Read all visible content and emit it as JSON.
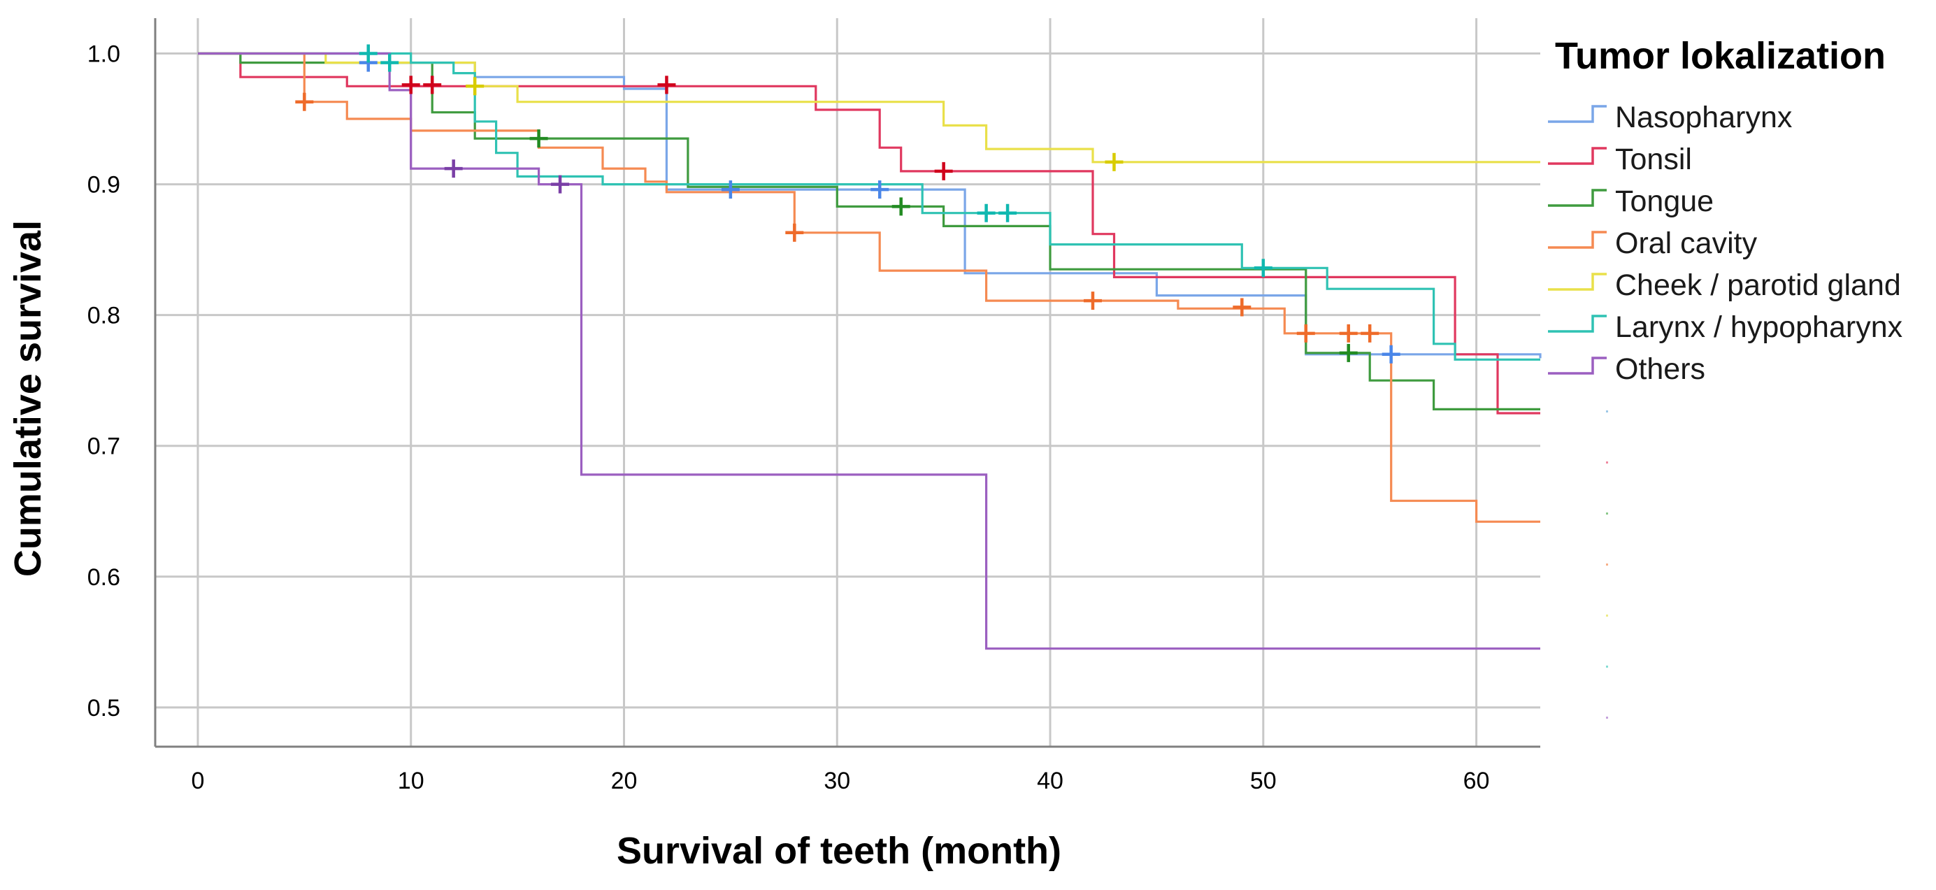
{
  "chart_data": {
    "type": "line",
    "subtype": "kaplan-meier step",
    "title": "",
    "xlabel": "Survival of teeth (month)",
    "ylabel": "Cumulative survival",
    "xlim": [
      -2,
      63
    ],
    "ylim": [
      0.47,
      1.027
    ],
    "x_ticks": [
      0,
      10,
      20,
      30,
      40,
      50,
      60
    ],
    "y_ticks": [
      0.5,
      0.6,
      0.7,
      0.8,
      0.9,
      1.0
    ],
    "x_tick_labels": [
      "0",
      "10",
      "20",
      "30",
      "40",
      "50",
      "60"
    ],
    "y_tick_labels": [
      "0.5",
      "0.6",
      "0.7",
      "0.8",
      "0.9",
      "1.0"
    ],
    "grid": true,
    "legend_title": "Tumor lokalization",
    "legend_position": "right",
    "series": [
      {
        "name": "Nasopharynx",
        "color": "#7aa6e8",
        "censor_color": "#4a86e8",
        "points": [
          [
            0,
            1.0
          ],
          [
            9,
            0.993
          ],
          [
            13,
            0.982
          ],
          [
            20,
            0.973
          ],
          [
            22,
            0.896
          ],
          [
            36,
            0.832
          ],
          [
            45,
            0.815
          ],
          [
            52,
            0.77
          ],
          [
            63,
            0.767
          ]
        ],
        "censored": [
          [
            8,
            0.993
          ],
          [
            25,
            0.896
          ],
          [
            32,
            0.896
          ],
          [
            56,
            0.77
          ]
        ]
      },
      {
        "name": "Tonsil",
        "color": "#e0385f",
        "censor_color": "#d0021b",
        "points": [
          [
            0,
            1.0
          ],
          [
            2,
            0.982
          ],
          [
            7,
            0.975
          ],
          [
            10,
            0.975
          ],
          [
            13,
            0.975
          ],
          [
            29,
            0.957
          ],
          [
            32,
            0.928
          ],
          [
            33,
            0.91
          ],
          [
            42,
            0.862
          ],
          [
            43,
            0.829
          ],
          [
            59,
            0.77
          ],
          [
            61,
            0.725
          ],
          [
            63,
            0.725
          ]
        ],
        "censored": [
          [
            10,
            0.976
          ],
          [
            11,
            0.976
          ],
          [
            22,
            0.976
          ],
          [
            35,
            0.91
          ]
        ]
      },
      {
        "name": "Tongue",
        "color": "#3f9b3f",
        "censor_color": "#228b22",
        "points": [
          [
            0,
            1.0
          ],
          [
            2,
            0.993
          ],
          [
            10,
            0.993
          ],
          [
            11,
            0.955
          ],
          [
            13,
            0.935
          ],
          [
            23,
            0.898
          ],
          [
            30,
            0.883
          ],
          [
            35,
            0.868
          ],
          [
            40,
            0.835
          ],
          [
            52,
            0.771
          ],
          [
            55,
            0.75
          ],
          [
            58,
            0.728
          ],
          [
            63,
            0.728
          ]
        ],
        "censored": [
          [
            16,
            0.935
          ],
          [
            33,
            0.883
          ],
          [
            54,
            0.771
          ]
        ]
      },
      {
        "name": "Oral cavity",
        "color": "#f58a52",
        "censor_color": "#ee6b2a",
        "points": [
          [
            0,
            1.0
          ],
          [
            5,
            0.963
          ],
          [
            7,
            0.95
          ],
          [
            10,
            0.941
          ],
          [
            16,
            0.928
          ],
          [
            19,
            0.912
          ],
          [
            21,
            0.902
          ],
          [
            22,
            0.894
          ],
          [
            28,
            0.863
          ],
          [
            32,
            0.834
          ],
          [
            37,
            0.811
          ],
          [
            46,
            0.805
          ],
          [
            51,
            0.786
          ],
          [
            56,
            0.658
          ],
          [
            60,
            0.642
          ],
          [
            63,
            0.642
          ]
        ],
        "censored": [
          [
            5,
            0.963
          ],
          [
            28,
            0.863
          ],
          [
            42,
            0.811
          ],
          [
            49,
            0.806
          ],
          [
            52,
            0.786
          ],
          [
            54,
            0.786
          ],
          [
            55,
            0.786
          ]
        ]
      },
      {
        "name": "Cheek / parotid gland",
        "color": "#e9e04a",
        "censor_color": "#d8cc00",
        "points": [
          [
            0,
            1.0
          ],
          [
            6,
            0.993
          ],
          [
            13,
            0.975
          ],
          [
            15,
            0.963
          ],
          [
            35,
            0.945
          ],
          [
            37,
            0.927
          ],
          [
            42,
            0.917
          ],
          [
            63,
            0.917
          ]
        ],
        "censored": [
          [
            13,
            0.975
          ],
          [
            43,
            0.917
          ]
        ]
      },
      {
        "name": "Larynx / hypopharynx",
        "color": "#2fc2b3",
        "censor_color": "#10b8b0",
        "points": [
          [
            0,
            1.0
          ],
          [
            10,
            0.993
          ],
          [
            12,
            0.985
          ],
          [
            13,
            0.948
          ],
          [
            14,
            0.924
          ],
          [
            15,
            0.906
          ],
          [
            19,
            0.9
          ],
          [
            34,
            0.878
          ],
          [
            40,
            0.854
          ],
          [
            49,
            0.836
          ],
          [
            53,
            0.82
          ],
          [
            58,
            0.778
          ],
          [
            59,
            0.766
          ],
          [
            63,
            0.766
          ]
        ],
        "censored": [
          [
            8,
            1.0
          ],
          [
            9,
            0.993
          ],
          [
            37,
            0.878
          ],
          [
            38,
            0.878
          ],
          [
            50,
            0.836
          ]
        ]
      },
      {
        "name": "Others",
        "color": "#9b5fc0",
        "censor_color": "#7a3fa6",
        "points": [
          [
            0,
            1.0
          ],
          [
            9,
            0.972
          ],
          [
            10,
            0.912
          ],
          [
            14,
            0.912
          ],
          [
            16,
            0.9
          ],
          [
            18,
            0.678
          ],
          [
            37,
            0.545
          ],
          [
            63,
            0.545
          ]
        ],
        "censored": [
          [
            12,
            0.912
          ],
          [
            17,
            0.9
          ]
        ]
      }
    ],
    "legend_extra_marks": [
      "#9ec8e6",
      "#f08aa0",
      "#8cc98c",
      "#f7b08a",
      "#eeeb88",
      "#86ddd4",
      "#c6a4dc"
    ]
  }
}
